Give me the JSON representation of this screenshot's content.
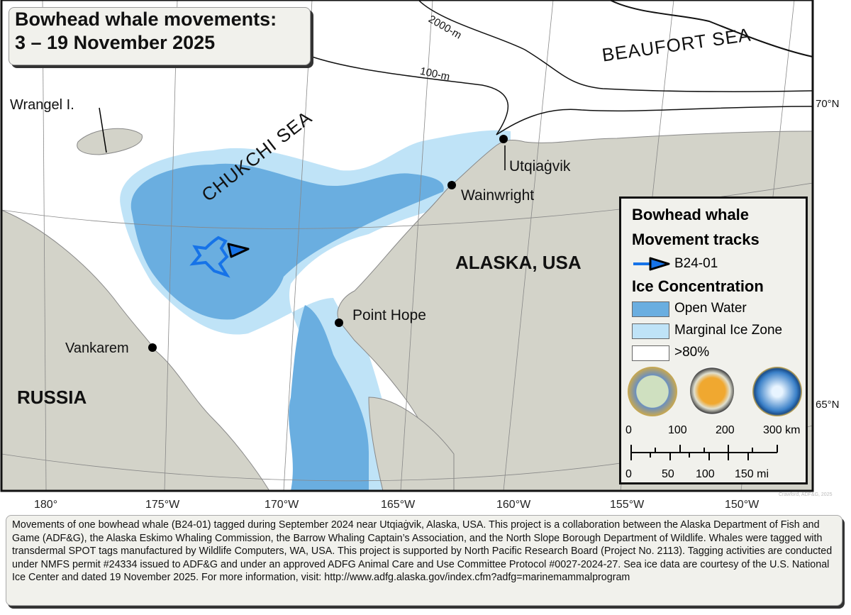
{
  "title": {
    "line1": "Bowhead whale movements:",
    "line2": "3 – 19 November 2025"
  },
  "colors": {
    "open_water": "#6aaee0",
    "marginal_ice": "#bfe3f7",
    "sea_ice": "#ffffff",
    "land": "#d3d3c9",
    "track": "#1673e8"
  },
  "labels": {
    "beaufort": "BEAUFORT SEA",
    "chukchi": "CHUKCHI SEA",
    "alaska": "ALASKA, USA",
    "russia": "RUSSIA",
    "wrangel": "Wrangel I.",
    "utqiagvik": "Utqiaġvik",
    "wainwright": "Wainwright",
    "point_hope": "Point Hope",
    "vankarem": "Vankarem",
    "depth_2000": "2000-m",
    "depth_100": "100-m",
    "lat_70": "70°N",
    "lat_65": "65°N"
  },
  "longitudes": [
    "180°",
    "175°W",
    "170°W",
    "165°W",
    "160°W",
    "155°W",
    "150°W"
  ],
  "legend": {
    "heading1": "Bowhead whale",
    "heading2": "Movement tracks",
    "track_label": "B24-01",
    "heading3": "Ice Concentration",
    "items": [
      {
        "label": "Open Water",
        "color": "#6aaee0"
      },
      {
        "label": "Marginal Ice Zone",
        "color": "#bfe3f7"
      },
      {
        "label": ">80%",
        "color": "#ffffff"
      }
    ],
    "logos": [
      "Alaska Department of Fish and Game",
      "North Slope Borough Department of Wildlife Management",
      "North Pacific Research Board"
    ],
    "scale_km": [
      "0",
      "100",
      "200",
      "300 km"
    ],
    "scale_mi": [
      "0",
      "50",
      "100",
      "150 mi"
    ]
  },
  "credit": "Crawford, ADF&G, 2025",
  "caption": "Movements of one bowhead whale (B24-01) tagged during September 2024 near Utqiaġvik, Alaska, USA. This project is a collaboration between the Alaska Department of Fish and Game (ADF&G), the Alaska Eskimo Whaling Commission, the Barrow Whaling Captain’s Association, and the North Slope Borough Department of Wildlife. Whales were tagged with transdermal SPOT tags manufactured by Wildlife Computers, WA, USA. This project is supported by North Pacific Research Board (Project No. 2113). Tagging activities are conducted under NMFS permit #24334 issued to ADF&G and under an approved ADFG Animal Care and Use Committee Protocol #0027-2024-27. Sea ice data are courtesy of the U.S. National Ice Center and dated 19 November 2025. For more information, visit: http://www.adfg.alaska.gov/index.cfm?adfg=marinemammalprogram"
}
